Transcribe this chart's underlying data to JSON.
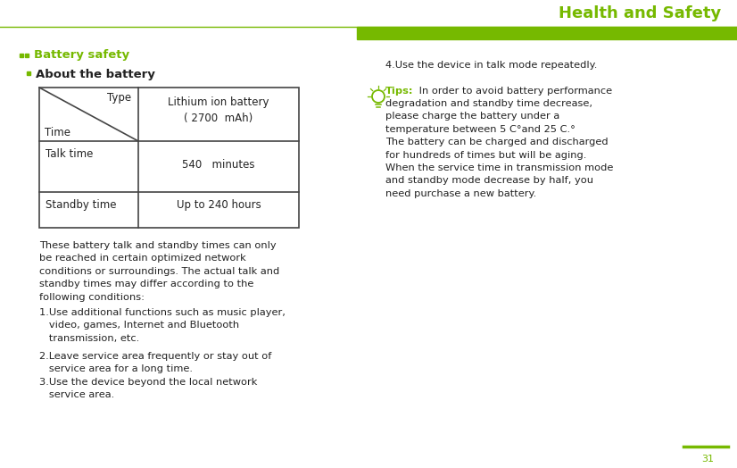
{
  "title": "Health and Safety",
  "title_color": "#76b900",
  "header_bar_color": "#76b900",
  "bg_color": "#ffffff",
  "section1_label": "Battery safety",
  "section2_label": "About the battery",
  "table_type_label": "Type",
  "table_time_label": "Time",
  "table_battery_line1": "Lithium ion battery",
  "table_battery_line2": "( 2700  mAh)",
  "table_talk_label": "Talk time",
  "table_talk_value": "540   minutes",
  "table_standby_label": "Standby time",
  "table_standby_value": "Up to 240 hours",
  "left_para": "These battery talk and standby times can only\nbe reached in certain optimized network\nconditions or surroundings. The actual talk and\nstandby times may differ according to the\nfollowing conditions:",
  "item1": "1.Use additional functions such as music player,\n   video, games, Internet and Bluetooth\n   transmission, etc.",
  "item2": "2.Leave service area frequently or stay out of\n   service area for a long time.",
  "item3": "3.Use the device beyond the local network\n   service area.",
  "right_item4": "4.Use the device in talk mode repeatedly.",
  "tips_label": "Tips:",
  "tips_body": " In order to avoid battery performance\ndegradation and standby time decrease,\nplease charge the battery under a\ntemperature between 5 C°and 25 C.°\nThe battery can be charged and discharged\nfor hundreds of times but will be aging.\nWhen the service time in transmission mode\nand standby mode decrease by half, you\nneed purchase a new battery.",
  "page_number": "31",
  "accent_color": "#76b900",
  "text_color": "#3a3a3a",
  "dark_color": "#222222"
}
